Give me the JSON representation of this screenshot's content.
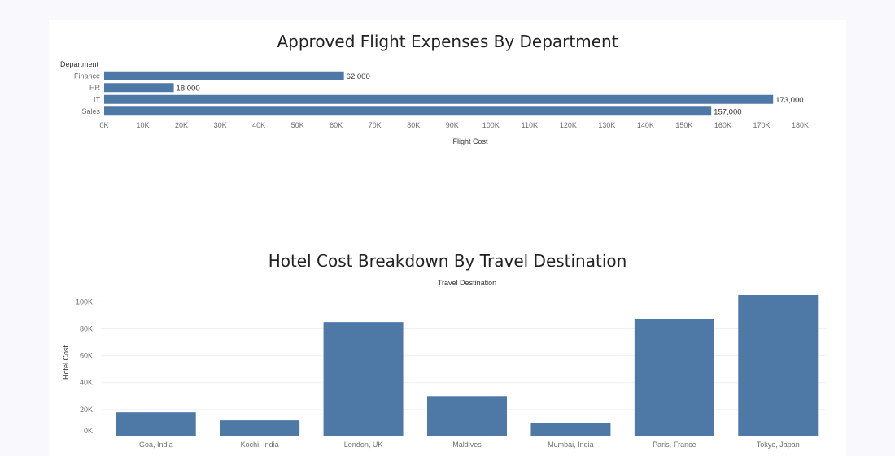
{
  "chart_data": [
    {
      "type": "bar",
      "orientation": "horizontal",
      "title": "Approved Flight Expenses By Department",
      "ylabel": "Department",
      "xlabel": "Flight Cost",
      "categories": [
        "Finance",
        "HR",
        "IT",
        "Sales"
      ],
      "values": [
        62000,
        18000,
        173000,
        157000
      ],
      "value_labels": [
        "62,000",
        "18,000",
        "173,000",
        "157,000"
      ],
      "xlim": [
        0,
        180000
      ],
      "ticks": [
        0,
        10000,
        20000,
        30000,
        40000,
        50000,
        60000,
        70000,
        80000,
        90000,
        100000,
        110000,
        120000,
        130000,
        140000,
        150000,
        160000,
        170000,
        180000
      ],
      "tick_labels": [
        "0K",
        "10K",
        "20K",
        "30K",
        "40K",
        "50K",
        "60K",
        "70K",
        "80K",
        "90K",
        "100K",
        "110K",
        "120K",
        "130K",
        "140K",
        "150K",
        "160K",
        "170K",
        "180K"
      ],
      "color": "#4e79a7",
      "grid": false
    },
    {
      "type": "bar",
      "orientation": "vertical",
      "title": "Hotel Cost Breakdown By Travel Destination",
      "xlabel": "Travel Destination",
      "ylabel": "Hotel Cost",
      "categories": [
        "Goa, India",
        "Kochi, India",
        "London, UK",
        "Maldives",
        "Mumbai, India",
        "Paris, France",
        "Tokyo, Japan"
      ],
      "values": [
        18000,
        12000,
        85000,
        30000,
        10000,
        87000,
        105000
      ],
      "ylim": [
        0,
        105000
      ],
      "ticks": [
        0,
        20000,
        40000,
        60000,
        80000,
        100000
      ],
      "tick_labels": [
        "0K",
        "20K",
        "40K",
        "60K",
        "80K",
        "100K"
      ],
      "color": "#4e79a7",
      "grid": true
    }
  ]
}
